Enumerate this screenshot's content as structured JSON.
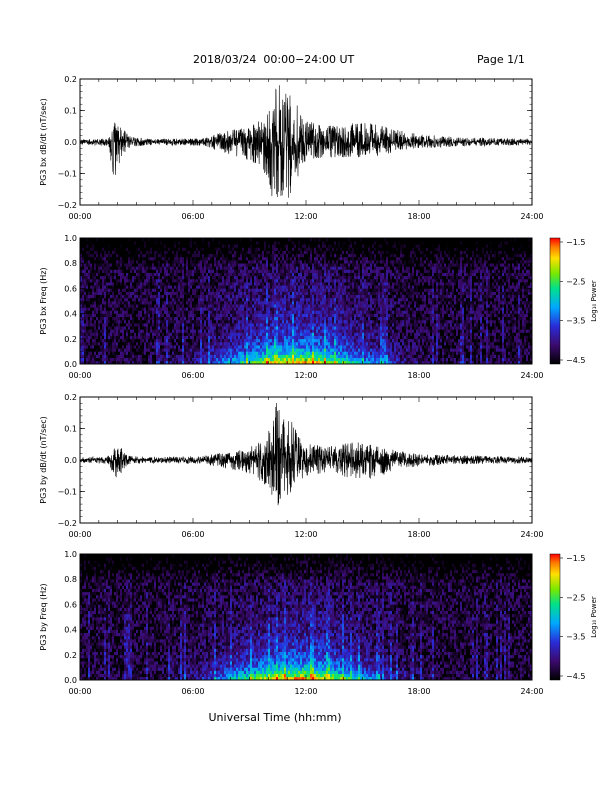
{
  "header": {
    "title": "2018/03/24  00:00−24:00 UT",
    "page": "Page 1/1"
  },
  "xlabel": "Universal Time (hh:mm)",
  "colors": {
    "line": "#000000",
    "background": "#000000"
  },
  "chart_data": [
    {
      "type": "line",
      "ylabel": "PG3 bx dB/dt (nT/sec)",
      "xlim": [
        0,
        24
      ],
      "ylim": [
        -0.2,
        0.2
      ],
      "xticks": [
        "00:00",
        "06:00",
        "12:00",
        "18:00",
        "24:00"
      ],
      "yticks": [
        "−0.2",
        "−0.1",
        "0.0",
        "0.1",
        "0.2"
      ],
      "envelope": {
        "x": [
          0,
          1.5,
          1.9,
          2.2,
          2.6,
          3.5,
          6.5,
          7.5,
          8.5,
          9.3,
          9.8,
          10.2,
          10.5,
          10.8,
          11.1,
          11.5,
          12.0,
          13.0,
          14.5,
          15.5,
          16.2,
          16.8,
          18.0,
          20.0,
          22.0,
          24.0
        ],
        "upper": [
          0.008,
          0.012,
          0.07,
          0.05,
          0.02,
          0.01,
          0.012,
          0.03,
          0.045,
          0.06,
          0.09,
          0.15,
          0.18,
          0.19,
          0.16,
          0.13,
          0.07,
          0.05,
          0.06,
          0.06,
          0.05,
          0.04,
          0.025,
          0.015,
          0.012,
          0.01
        ],
        "lower": [
          -0.008,
          -0.015,
          -0.15,
          -0.05,
          -0.02,
          -0.01,
          -0.012,
          -0.03,
          -0.05,
          -0.07,
          -0.1,
          -0.18,
          -0.2,
          -0.2,
          -0.18,
          -0.12,
          -0.06,
          -0.05,
          -0.05,
          -0.05,
          -0.045,
          -0.03,
          -0.02,
          -0.015,
          -0.012,
          -0.01
        ]
      }
    },
    {
      "type": "heatmap",
      "ylabel": "PG3 bx Freq (Hz)",
      "xlim": [
        0,
        24
      ],
      "ylim": [
        0,
        1.0
      ],
      "xticks": [
        "00:00",
        "06:00",
        "12:00",
        "18:00",
        "24:00"
      ],
      "yticks": [
        "0.0",
        "0.2",
        "0.4",
        "0.6",
        "0.8",
        "1.0"
      ],
      "colorbar": {
        "label": "Log₁₀ Power",
        "ticks": [
          "−1.5",
          "−2.5",
          "−3.5",
          "−4.5"
        ],
        "range": [
          -4.5,
          -1.5
        ]
      },
      "features": {
        "background_log_power": -4.3,
        "low_freq_log_power": -2.8,
        "active_period_hours": [
          7,
          18
        ],
        "peak_hour": 11.5
      }
    },
    {
      "type": "line",
      "ylabel": "PG3 by dB/dt (nT/sec)",
      "xlim": [
        0,
        24
      ],
      "ylim": [
        -0.2,
        0.2
      ],
      "xticks": [
        "00:00",
        "06:00",
        "12:00",
        "18:00",
        "24:00"
      ],
      "yticks": [
        "−0.2",
        "−0.1",
        "0.0",
        "0.1",
        "0.2"
      ],
      "envelope": {
        "x": [
          0,
          1.5,
          1.9,
          2.2,
          2.6,
          3.5,
          6.5,
          7.5,
          8.5,
          9.3,
          9.8,
          10.2,
          10.5,
          10.8,
          11.1,
          11.5,
          12.0,
          13.0,
          14.5,
          15.5,
          16.2,
          16.8,
          18.0,
          20.0,
          22.0,
          24.0
        ],
        "upper": [
          0.008,
          0.012,
          0.055,
          0.04,
          0.015,
          0.01,
          0.012,
          0.025,
          0.035,
          0.05,
          0.07,
          0.12,
          0.2,
          0.13,
          0.14,
          0.09,
          0.06,
          0.04,
          0.06,
          0.05,
          0.04,
          0.03,
          0.02,
          0.015,
          0.012,
          0.01
        ],
        "lower": [
          -0.008,
          -0.012,
          -0.06,
          -0.04,
          -0.015,
          -0.01,
          -0.012,
          -0.025,
          -0.035,
          -0.05,
          -0.08,
          -0.12,
          -0.15,
          -0.12,
          -0.11,
          -0.08,
          -0.05,
          -0.04,
          -0.06,
          -0.06,
          -0.05,
          -0.03,
          -0.02,
          -0.015,
          -0.012,
          -0.01
        ]
      }
    },
    {
      "type": "heatmap",
      "ylabel": "PG3 by Freq (Hz)",
      "xlim": [
        0,
        24
      ],
      "ylim": [
        0,
        1.0
      ],
      "xticks": [
        "00:00",
        "06:00",
        "12:00",
        "18:00",
        "24:00"
      ],
      "yticks": [
        "0.0",
        "0.2",
        "0.4",
        "0.6",
        "0.8",
        "1.0"
      ],
      "colorbar": {
        "label": "Log₁₀ Power",
        "ticks": [
          "−1.5",
          "−2.5",
          "−3.5",
          "−4.5"
        ],
        "range": [
          -4.5,
          -1.5
        ]
      },
      "features": {
        "background_log_power": -4.3,
        "low_freq_log_power": -2.8,
        "active_period_hours": [
          7,
          18
        ],
        "peak_hour": 11.5
      }
    }
  ]
}
